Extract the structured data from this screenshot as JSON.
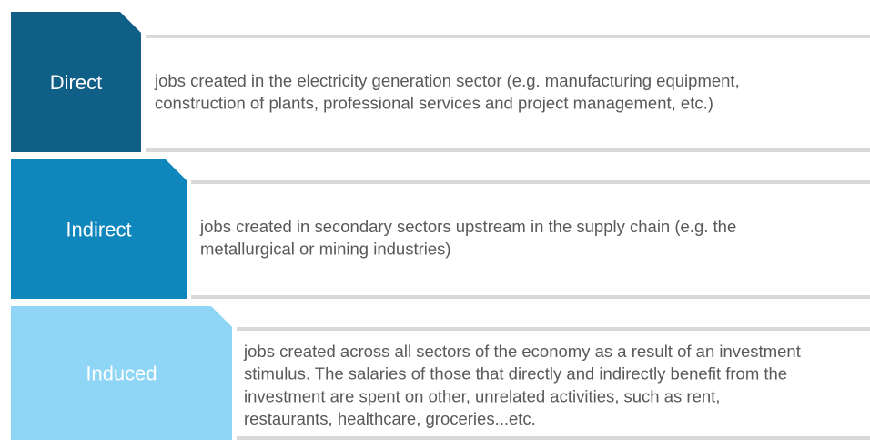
{
  "rows": [
    {
      "label": "Direct",
      "lines": [
        "jobs created in the electricity generation sector (e.g. manufacturing equipment,",
        "construction of plants, professional services and project management, etc.)"
      ]
    },
    {
      "label": "Indirect",
      "lines": [
        "jobs created in secondary sectors upstream in the supply chain (e.g. the",
        "metallurgical or mining industries)"
      ]
    },
    {
      "label": "Induced",
      "lines": [
        "jobs created across all sectors of the economy as a result of an investment",
        "stimulus. The salaries of those that directly and indirectly benefit from the",
        "investment are spent on other, unrelated activities, such as rent,",
        "restaurants, healthcare, groceries...etc."
      ]
    }
  ]
}
